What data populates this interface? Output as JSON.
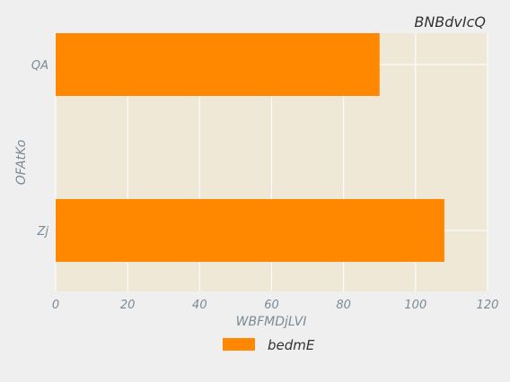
{
  "chart_data": {
    "type": "bar",
    "orientation": "horizontal",
    "title": "BNBdvIcQ",
    "xlabel": "WBFMDjLVI",
    "ylabel": "OFAtKo",
    "categories": [
      "QA",
      "Zj"
    ],
    "series": [
      {
        "name": "bedmE",
        "values": [
          90,
          108
        ]
      }
    ],
    "xlim": [
      0,
      120
    ],
    "xticks": [
      0,
      20,
      40,
      60,
      80,
      100,
      120
    ],
    "grid": true,
    "legend_position": "bottom",
    "colors": {
      "bar": "#ff8800",
      "plot_background": "#efe8d7",
      "figure_background": "#efefef",
      "grid": "#ffffff",
      "text": "#7a8a96",
      "title": "#333333"
    }
  }
}
